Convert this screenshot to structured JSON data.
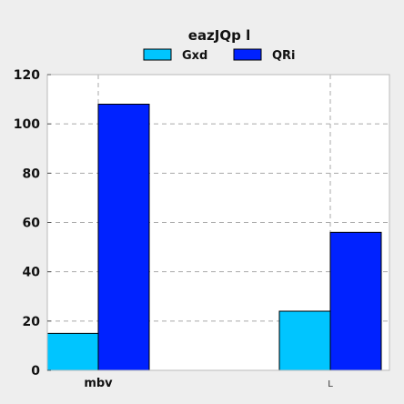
{
  "chart_data": {
    "type": "bar",
    "title": "eazJQp  l",
    "categories": [
      "mbv",
      "L"
    ],
    "series": [
      {
        "name": "Gxd",
        "values": [
          15,
          24
        ],
        "color": "#00c5ff"
      },
      {
        "name": "QRi",
        "values": [
          108,
          56
        ],
        "color": "#0022ff"
      }
    ],
    "ylim": [
      0,
      120
    ],
    "yticks": [
      0,
      20,
      40,
      60,
      80,
      100,
      120
    ],
    "grid": true,
    "legend_position": "top-center",
    "background_color": "#eeeeee",
    "plot_background_color": "#ffffff"
  }
}
